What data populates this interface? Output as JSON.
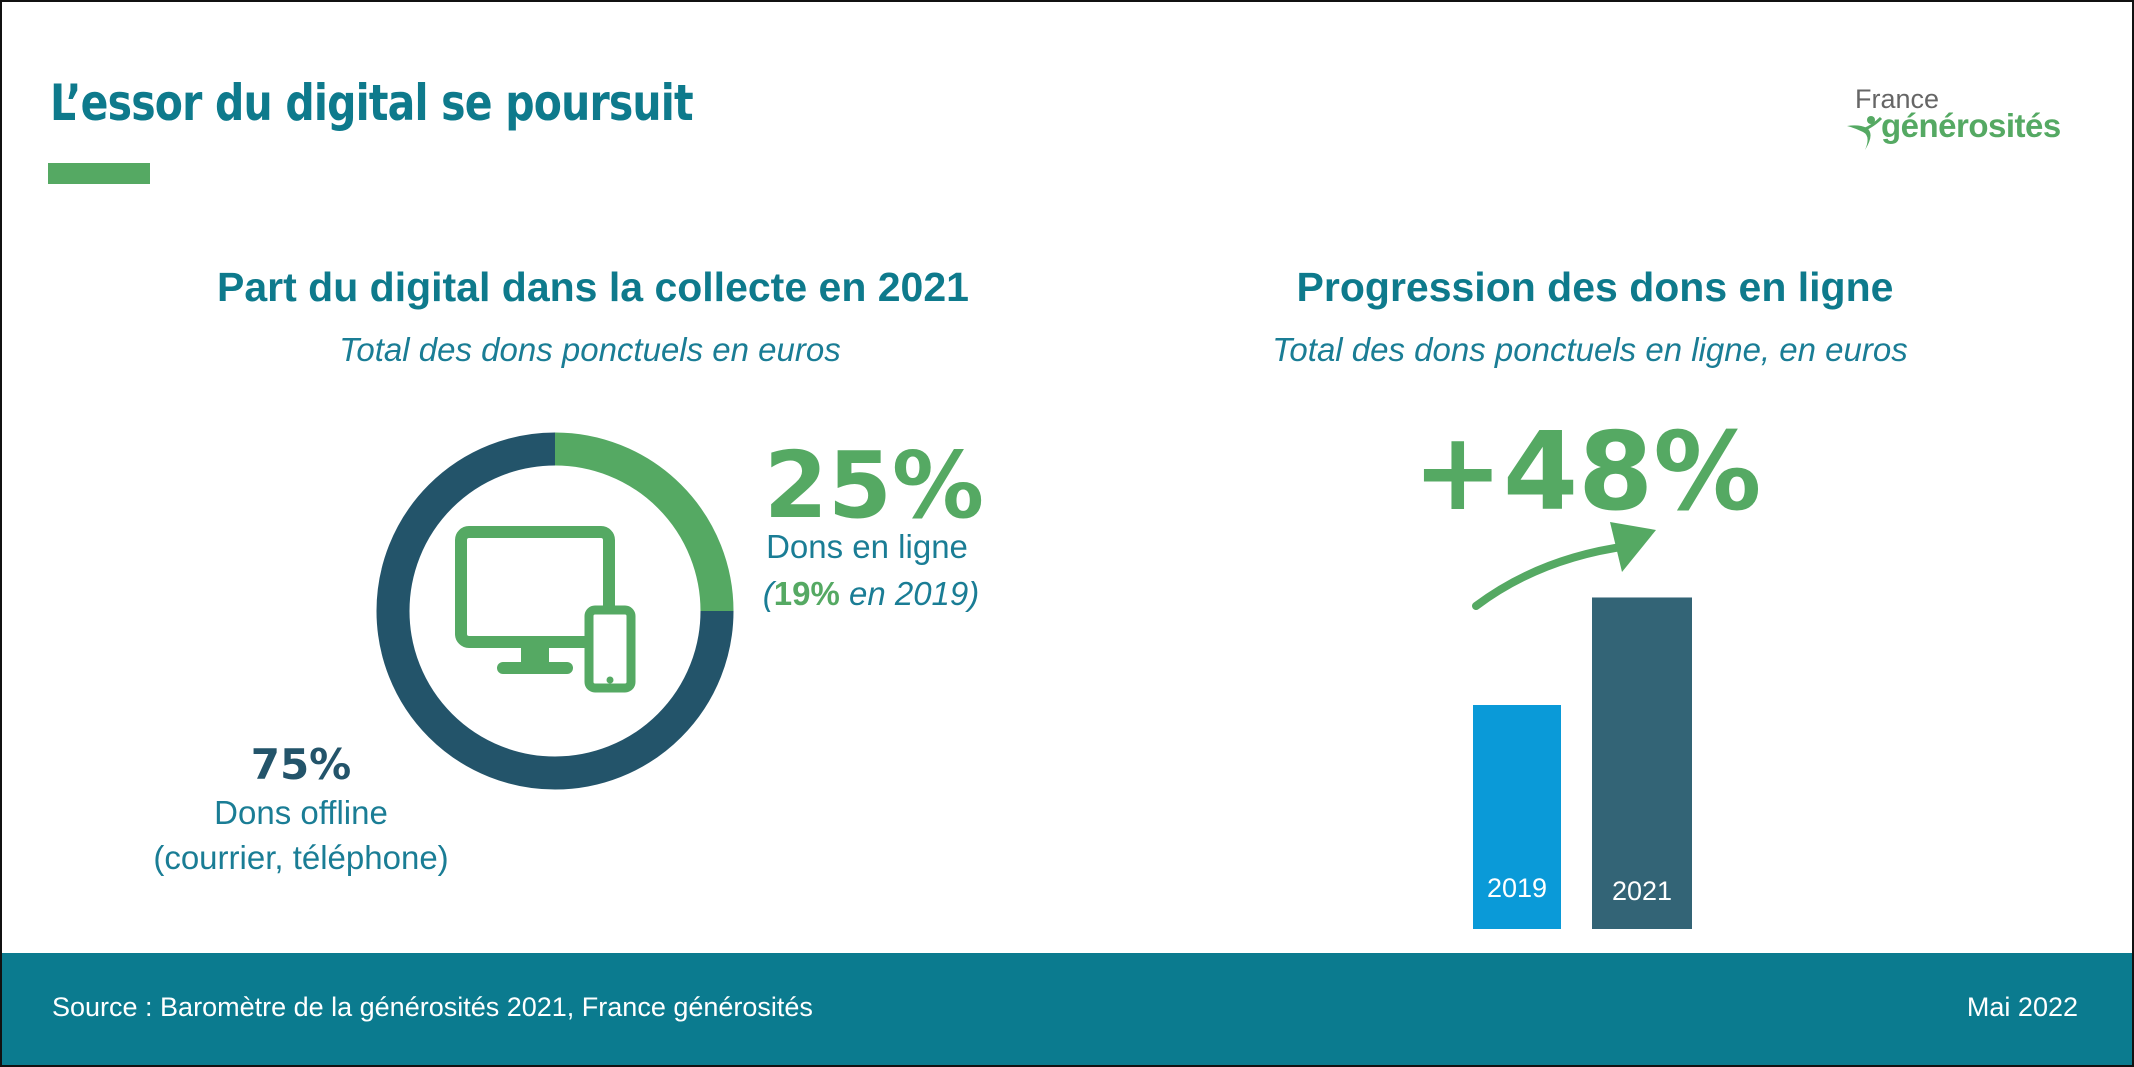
{
  "header": {
    "title": "L’essor du digital se poursuit",
    "logo_text": "France générosités",
    "logo_line1": "France",
    "logo_line2": "générosités"
  },
  "colors": {
    "teal_text": "#0e7a8c",
    "green": "#55a963",
    "dark_navy": "#23546a",
    "bar_2019": "#0a9ad8",
    "bar_2021": "#336476",
    "footer": "#0b7b8f"
  },
  "left_panel": {
    "title": "Part du digital dans la collecte en 2021",
    "subtitle": "Total des dons ponctuels en euros",
    "online_pct": "25%",
    "online_label": "Dons en ligne",
    "online_note_open": "(",
    "online_note_pct": "19%",
    "online_note_rest": " en 2019)",
    "offline_pct": "75%",
    "offline_label": "Dons offline",
    "offline_note": "(courrier, téléphone)",
    "center_icon": "desktop-and-phone-icon"
  },
  "right_panel": {
    "title": "Progression des dons en ligne",
    "subtitle": "Total des dons ponctuels en ligne, en euros",
    "growth": "+48%",
    "arrow_icon": "curved-up-arrow-icon"
  },
  "chart_data": [
    {
      "type": "pie",
      "style": "donut",
      "slices": [
        {
          "label": "Dons en ligne",
          "value": 25,
          "color": "#55a963"
        },
        {
          "label": "Dons offline",
          "value": 75,
          "color": "#23546a"
        }
      ]
    },
    {
      "type": "bar",
      "categories": [
        "2019",
        "2021"
      ],
      "relative_values": [
        1,
        1.48
      ],
      "colors": [
        "#0a9ad8",
        "#336476"
      ],
      "annotation": "+48%",
      "axes_visible": false
    }
  ],
  "footer": {
    "source": "Source : Baromètre de la générosités 2021, France générosités",
    "date": "Mai 2022"
  }
}
